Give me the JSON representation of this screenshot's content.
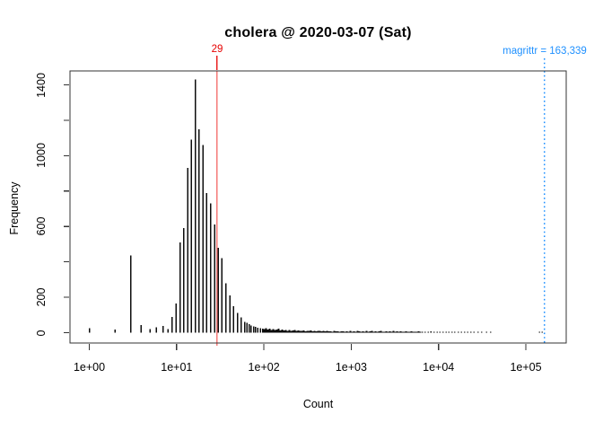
{
  "annotations": {
    "threshold": {
      "label": "29",
      "log10": 1.462,
      "label_color": "#e60000",
      "line_color": "#f57a78"
    },
    "max_marker": {
      "label": "magrittr = 163,339",
      "log10": 5.213,
      "color": "#1e90ff"
    }
  },
  "colors": {
    "bar": "#0d0d0d",
    "axis": "#333333",
    "background": "#ffffff",
    "text": "#000000"
  },
  "chart_data": {
    "type": "bar",
    "title": "cholera @ 2020-03-07 (Sat)",
    "xlabel": "Count",
    "ylabel": "Frequency",
    "x_scale": "log10",
    "xlim_log10": [
      -0.221,
      5.463
    ],
    "ylim": [
      -58,
      1478
    ],
    "grid": "off",
    "legend": "none",
    "x_ticks": [
      {
        "log10": 0,
        "label": "1e+00"
      },
      {
        "log10": 1,
        "label": "1e+01"
      },
      {
        "log10": 2,
        "label": "1e+02"
      },
      {
        "log10": 3,
        "label": "1e+03"
      },
      {
        "log10": 4,
        "label": "1e+04"
      },
      {
        "log10": 5,
        "label": "1e+05"
      }
    ],
    "y_ticks": [
      {
        "value": 0,
        "label": "0"
      },
      {
        "value": 200,
        "label": "200"
      },
      {
        "value": 400,
        "label": ""
      },
      {
        "value": 600,
        "label": "600"
      },
      {
        "value": 800,
        "label": ""
      },
      {
        "value": 1000,
        "label": "1000"
      },
      {
        "value": 1200,
        "label": ""
      },
      {
        "value": 1400,
        "label": "1400"
      }
    ],
    "bars_log10_frequency": [
      [
        0.0,
        25
      ],
      [
        0.293,
        17
      ],
      [
        0.473,
        437
      ],
      [
        0.596,
        42
      ],
      [
        0.694,
        20
      ],
      [
        0.766,
        30
      ],
      [
        0.843,
        37
      ],
      [
        0.904,
        20
      ],
      [
        0.949,
        88
      ],
      [
        0.994,
        166
      ],
      [
        1.038,
        510
      ],
      [
        1.082,
        590
      ],
      [
        1.126,
        930
      ],
      [
        1.171,
        1090
      ],
      [
        1.214,
        1430
      ],
      [
        1.258,
        1150
      ],
      [
        1.302,
        1060
      ],
      [
        1.346,
        790
      ],
      [
        1.39,
        730
      ],
      [
        1.434,
        610
      ],
      [
        1.478,
        480
      ],
      [
        1.521,
        420
      ],
      [
        1.565,
        280
      ],
      [
        1.609,
        210
      ],
      [
        1.653,
        150
      ],
      [
        1.696,
        112
      ],
      [
        1.74,
        85
      ],
      [
        1.778,
        62
      ],
      [
        1.804,
        55
      ],
      [
        1.83,
        47
      ],
      [
        1.855,
        41
      ],
      [
        1.881,
        36
      ],
      [
        1.906,
        32
      ],
      [
        1.932,
        28
      ],
      [
        1.958,
        25
      ],
      [
        1.984,
        22
      ],
      [
        2.004,
        20
      ],
      [
        2.025,
        26
      ],
      [
        2.045,
        17
      ],
      [
        2.066,
        24
      ],
      [
        2.086,
        15
      ],
      [
        2.107,
        21
      ],
      [
        2.127,
        14
      ],
      [
        2.148,
        18
      ],
      [
        2.169,
        22
      ],
      [
        2.189,
        13
      ],
      [
        2.21,
        17
      ],
      [
        2.23,
        12
      ],
      [
        2.251,
        15
      ],
      [
        2.271,
        11
      ],
      [
        2.292,
        14
      ],
      [
        2.312,
        10
      ],
      [
        2.333,
        13
      ],
      [
        2.353,
        16
      ],
      [
        2.374,
        10
      ],
      [
        2.394,
        12
      ],
      [
        2.415,
        9
      ],
      [
        2.436,
        11
      ],
      [
        2.456,
        13
      ],
      [
        2.477,
        8
      ],
      [
        2.497,
        11
      ],
      [
        2.518,
        9
      ],
      [
        2.538,
        12
      ],
      [
        2.559,
        8
      ],
      [
        2.579,
        10
      ],
      [
        2.6,
        7
      ],
      [
        2.62,
        9
      ],
      [
        2.641,
        11
      ],
      [
        2.661,
        7
      ],
      [
        2.682,
        9
      ],
      [
        2.703,
        8
      ],
      [
        2.723,
        10
      ],
      [
        2.744,
        7
      ],
      [
        2.764,
        8
      ],
      [
        2.785,
        6
      ],
      [
        2.805,
        9
      ],
      [
        2.826,
        7
      ],
      [
        2.846,
        8
      ],
      [
        2.867,
        6
      ],
      [
        2.887,
        7
      ],
      [
        2.908,
        8
      ],
      [
        2.928,
        6
      ],
      [
        2.949,
        7
      ],
      [
        2.969,
        6
      ],
      [
        2.991,
        9
      ],
      [
        3.011,
        6
      ],
      [
        3.032,
        8
      ],
      [
        3.052,
        5
      ],
      [
        3.073,
        10
      ],
      [
        3.093,
        7
      ],
      [
        3.114,
        5
      ],
      [
        3.134,
        8
      ],
      [
        3.155,
        6
      ],
      [
        3.176,
        9
      ],
      [
        3.196,
        5
      ],
      [
        3.217,
        7
      ],
      [
        3.237,
        10
      ],
      [
        3.258,
        6
      ],
      [
        3.278,
        8
      ],
      [
        3.299,
        5
      ],
      [
        3.319,
        7
      ],
      [
        3.34,
        9
      ],
      [
        3.36,
        5
      ],
      [
        3.381,
        6
      ],
      [
        3.401,
        8
      ],
      [
        3.422,
        5
      ],
      [
        3.442,
        7
      ],
      [
        3.463,
        6
      ],
      [
        3.483,
        9
      ],
      [
        3.504,
        5
      ],
      [
        3.525,
        7
      ],
      [
        3.545,
        5
      ],
      [
        3.566,
        8
      ],
      [
        3.586,
        6
      ],
      [
        3.607,
        5
      ],
      [
        3.627,
        7
      ],
      [
        3.648,
        5
      ],
      [
        3.668,
        6
      ],
      [
        3.689,
        8
      ],
      [
        3.709,
        5
      ],
      [
        3.73,
        6
      ],
      [
        3.75,
        5
      ],
      [
        3.771,
        7
      ],
      [
        3.791,
        5
      ],
      [
        3.813,
        6
      ],
      [
        3.844,
        4
      ],
      [
        3.88,
        5
      ],
      [
        3.911,
        7
      ],
      [
        3.947,
        4
      ],
      [
        3.983,
        5
      ],
      [
        4.018,
        4
      ],
      [
        4.054,
        6
      ],
      [
        4.09,
        5
      ],
      [
        4.121,
        4
      ],
      [
        4.157,
        5
      ],
      [
        4.188,
        6
      ],
      [
        4.224,
        4
      ],
      [
        4.26,
        5
      ],
      [
        4.296,
        4
      ],
      [
        4.332,
        5
      ],
      [
        4.368,
        4
      ],
      [
        4.404,
        4
      ],
      [
        4.455,
        4
      ],
      [
        4.496,
        3
      ],
      [
        4.548,
        4
      ],
      [
        4.599,
        3
      ],
      [
        5.159,
        4
      ],
      [
        5.19,
        4
      ]
    ]
  }
}
